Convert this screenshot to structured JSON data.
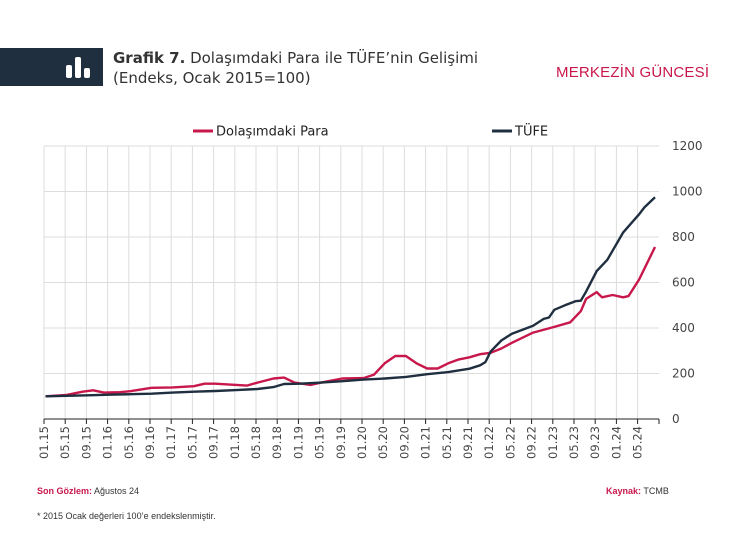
{
  "header": {
    "title_bold": "Grafik 7.",
    "title_rest": " Dolaşımdaki Para ile TÜFE’nin Gelişimi",
    "subtitle": "(Endeks, Ocak 2015=100)",
    "icon": "bar-chart-icon",
    "brand": "MERKEZİN GÜNCESİ"
  },
  "footer": {
    "last_obs_label": "Son Gözlem:",
    "last_obs_value": " Ağustos 24",
    "source_label": "Kaynak:",
    "source_value": " TCMB",
    "note": "* 2015 Ocak değerleri 100’e endekslenmiştir."
  },
  "colors": {
    "para": "#c8174b",
    "tufe": "#1f2f3f",
    "grid": "#dddddd",
    "header": "#1f2f3f"
  },
  "chart_data": {
    "type": "line",
    "title": "Dolaşımdaki Para ile TÜFE’nin Gelişimi",
    "xlabel": "",
    "ylabel": "",
    "ylim": [
      0,
      1200
    ],
    "yticks": [
      "0",
      "200",
      "400",
      "600",
      "800",
      "1000",
      "1200"
    ],
    "xticks": [
      "01.15",
      "05.15",
      "09.15",
      "01.16",
      "05.16",
      "09.16",
      "01.17",
      "05.17",
      "09.17",
      "01.18",
      "05.18",
      "09.18",
      "01.19",
      "05.19",
      "09.19",
      "01.20",
      "05.20",
      "09.20",
      "01.21",
      "05.21",
      "09.21",
      "01.22",
      "05.22",
      "09.22",
      "01.23",
      "05.23",
      "09.23",
      "01.24",
      "05.24"
    ],
    "grid": true,
    "legend": "top",
    "series": [
      {
        "name": "Dolaşımdaki Para",
        "color": "#c8174b",
        "points": [
          [
            "01.15",
            100
          ],
          [
            "05.15",
            106
          ],
          [
            "08.15",
            120
          ],
          [
            "10.15",
            126
          ],
          [
            "12.15",
            116
          ],
          [
            "03.16",
            118
          ],
          [
            "05.16",
            122
          ],
          [
            "09.16",
            137
          ],
          [
            "01.17",
            139
          ],
          [
            "05.17",
            144
          ],
          [
            "07.17",
            155
          ],
          [
            "09.17",
            155
          ],
          [
            "01.18",
            150
          ],
          [
            "03.18",
            147
          ],
          [
            "05.18",
            160
          ],
          [
            "08.18",
            178
          ],
          [
            "10.18",
            182
          ],
          [
            "12.18",
            160
          ],
          [
            "03.19",
            150
          ],
          [
            "05.19",
            160
          ],
          [
            "09.19",
            178
          ],
          [
            "01.20",
            180
          ],
          [
            "03.20",
            195
          ],
          [
            "05.20",
            245
          ],
          [
            "07.20",
            277
          ],
          [
            "09.20",
            277
          ],
          [
            "11.20",
            245
          ],
          [
            "01.21",
            222
          ],
          [
            "03.21",
            222
          ],
          [
            "05.21",
            245
          ],
          [
            "07.21",
            262
          ],
          [
            "09.21",
            271
          ],
          [
            "11.21",
            285
          ],
          [
            "01.22",
            291
          ],
          [
            "03.22",
            310
          ],
          [
            "05.22",
            335
          ],
          [
            "09.22",
            380
          ],
          [
            "01.23",
            405
          ],
          [
            "04.23",
            425
          ],
          [
            "06.23",
            474
          ],
          [
            "07.23",
            528
          ],
          [
            "09.23",
            558
          ],
          [
            "10.23",
            535
          ],
          [
            "12.23",
            545
          ],
          [
            "02.24",
            535
          ],
          [
            "03.24",
            540
          ],
          [
            "05.24",
            613
          ],
          [
            "08.24",
            756
          ]
        ]
      },
      {
        "name": "TÜFE",
        "color": "#1f2f3f",
        "points": [
          [
            "01.15",
            100
          ],
          [
            "05.15",
            102
          ],
          [
            "09.15",
            104
          ],
          [
            "01.16",
            107
          ],
          [
            "05.16",
            109
          ],
          [
            "09.16",
            111
          ],
          [
            "01.17",
            116
          ],
          [
            "05.17",
            120
          ],
          [
            "09.17",
            123
          ],
          [
            "01.18",
            127
          ],
          [
            "05.18",
            132
          ],
          [
            "08.18",
            140
          ],
          [
            "10.18",
            154
          ],
          [
            "01.19",
            155
          ],
          [
            "05.19",
            160
          ],
          [
            "09.19",
            166
          ],
          [
            "01.20",
            173
          ],
          [
            "05.20",
            178
          ],
          [
            "09.20",
            185
          ],
          [
            "01.21",
            197
          ],
          [
            "05.21",
            206
          ],
          [
            "09.21",
            221
          ],
          [
            "11.21",
            236
          ],
          [
            "12.21",
            250
          ],
          [
            "01.22",
            297
          ],
          [
            "03.22",
            345
          ],
          [
            "05.22",
            375
          ],
          [
            "09.22",
            410
          ],
          [
            "11.22",
            440
          ],
          [
            "12.22",
            446
          ],
          [
            "01.23",
            480
          ],
          [
            "03.23",
            500
          ],
          [
            "05.23",
            518
          ],
          [
            "06.23",
            520
          ],
          [
            "07.23",
            560
          ],
          [
            "09.23",
            650
          ],
          [
            "11.23",
            700
          ],
          [
            "12.23",
            740
          ],
          [
            "02.24",
            820
          ],
          [
            "05.24",
            900
          ],
          [
            "06.24",
            930
          ],
          [
            "08.24",
            975
          ]
        ]
      }
    ]
  }
}
